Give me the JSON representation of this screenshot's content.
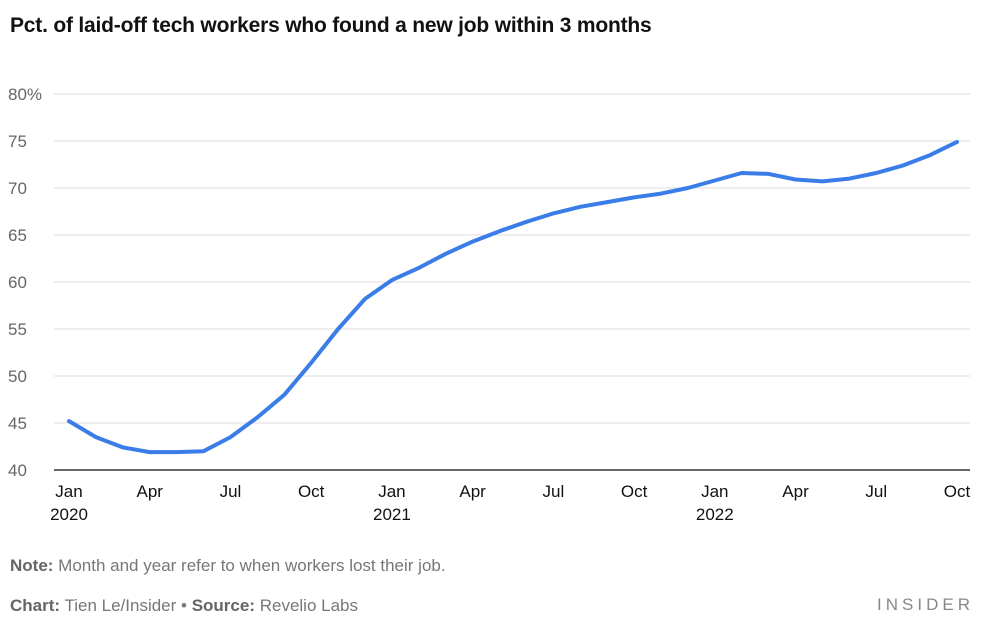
{
  "chart_data": {
    "type": "line",
    "title": "Pct. of laid-off tech workers who found a new job within 3 months",
    "xlabel": "",
    "ylabel": "",
    "ylim": [
      40,
      80
    ],
    "y_ticks": [
      "80%",
      "75",
      "70",
      "65",
      "60",
      "55",
      "50",
      "45",
      "40"
    ],
    "x_ticks": [
      {
        "month": "Jan",
        "year": "2020",
        "index": 0
      },
      {
        "month": "Apr",
        "year": "",
        "index": 3
      },
      {
        "month": "Jul",
        "year": "",
        "index": 6
      },
      {
        "month": "Oct",
        "year": "",
        "index": 9
      },
      {
        "month": "Jan",
        "year": "2021",
        "index": 12
      },
      {
        "month": "Apr",
        "year": "",
        "index": 15
      },
      {
        "month": "Jul",
        "year": "",
        "index": 18
      },
      {
        "month": "Oct",
        "year": "",
        "index": 21
      },
      {
        "month": "Jan",
        "year": "2022",
        "index": 24
      },
      {
        "month": "Apr",
        "year": "",
        "index": 27
      },
      {
        "month": "Jul",
        "year": "",
        "index": 30
      },
      {
        "month": "Oct",
        "year": "",
        "index": 33
      }
    ],
    "x": [
      "Jan 2020",
      "Feb 2020",
      "Mar 2020",
      "Apr 2020",
      "May 2020",
      "Jun 2020",
      "Jul 2020",
      "Aug 2020",
      "Sep 2020",
      "Oct 2020",
      "Nov 2020",
      "Dec 2020",
      "Jan 2021",
      "Feb 2021",
      "Mar 2021",
      "Apr 2021",
      "May 2021",
      "Jun 2021",
      "Jul 2021",
      "Aug 2021",
      "Sep 2021",
      "Oct 2021",
      "Nov 2021",
      "Dec 2021",
      "Jan 2022",
      "Feb 2022",
      "Mar 2022",
      "Apr 2022",
      "May 2022",
      "Jun 2022",
      "Jul 2022",
      "Aug 2022",
      "Sep 2022",
      "Oct 2022"
    ],
    "series": [
      {
        "values": [
          45.2,
          43.5,
          42.4,
          41.9,
          41.9,
          42.0,
          43.5,
          45.6,
          48.0,
          51.4,
          55.0,
          58.2,
          60.2,
          61.5,
          63.0,
          64.3,
          65.4,
          66.4,
          67.3,
          68.0,
          68.5,
          69.0,
          69.4,
          70.0,
          70.8,
          71.6,
          71.5,
          70.9,
          70.7,
          71.0,
          71.6,
          72.4,
          73.5,
          74.9
        ],
        "color": "#3b7de8"
      }
    ],
    "grid": true,
    "legend": "none"
  },
  "footer": {
    "note_label": "Note:",
    "note_text": " Month and year refer to when workers lost their job.",
    "chart_label": "Chart:",
    "chart_text": " Tien Le/Insider • ",
    "source_label": "Source:",
    "source_text": " Revelio Labs",
    "logo": "INSIDER"
  },
  "colors": {
    "line": "#3b7de8",
    "grid": "#dddddd",
    "axis": "#333333"
  }
}
